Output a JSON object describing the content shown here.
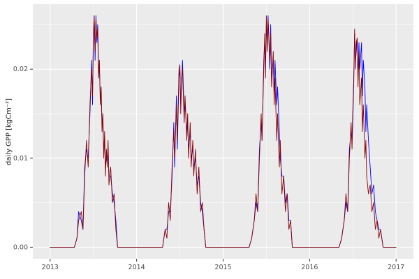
{
  "figure": {
    "background": "#FFFFFF",
    "panel_background": "#EBEBEB",
    "grid_major_color": "#FFFFFF",
    "grid_minor_color": "#FFFFFF",
    "tick_color": "#333333",
    "axis_text_color": "#4D4D4D",
    "axis_title_color": "#1A1A1A"
  },
  "chart_data": {
    "type": "line",
    "title": "",
    "xlabel": "",
    "ylabel": "daily GPP [kgCm⁻²]",
    "xlim": [
      2012.8,
      2017.2
    ],
    "ylim": [
      -0.0013,
      0.0273
    ],
    "grid": true,
    "legend": "none",
    "x_major_ticks": [
      2013,
      2014,
      2015,
      2016,
      2017
    ],
    "x_tick_labels": [
      "2013",
      "2014",
      "2015",
      "2016",
      "2017"
    ],
    "x_minor_ticks": [
      2013.5,
      2014.5,
      2015.5,
      2016.5
    ],
    "y_major_ticks": [
      0,
      0.01,
      0.02
    ],
    "y_tick_labels": [
      "0.00",
      "0.01",
      "0.02"
    ],
    "y_minor_ticks": [
      0.005,
      0.015,
      0.025
    ],
    "x": [
      2013.0,
      2013.28,
      2013.31,
      2013.33,
      2013.36,
      2013.38,
      2013.4,
      2013.42,
      2013.44,
      2013.46,
      2013.48,
      2013.49,
      2013.5,
      2013.51,
      2013.52,
      2013.53,
      2013.54,
      2013.55,
      2013.56,
      2013.57,
      2013.58,
      2013.59,
      2013.6,
      2013.61,
      2013.62,
      2013.63,
      2013.64,
      2013.65,
      2013.66,
      2013.67,
      2013.68,
      2013.7,
      2013.72,
      2013.74,
      2013.76,
      2013.78,
      2014.3,
      2014.33,
      2014.35,
      2014.37,
      2014.39,
      2014.41,
      2014.43,
      2014.44,
      2014.46,
      2014.47,
      2014.49,
      2014.5,
      2014.51,
      2014.52,
      2014.53,
      2014.55,
      2014.56,
      2014.58,
      2014.59,
      2014.6,
      2014.62,
      2014.63,
      2014.65,
      2014.66,
      2014.68,
      2014.7,
      2014.72,
      2014.74,
      2014.76,
      2014.78,
      2014.8,
      2015.3,
      2015.33,
      2015.36,
      2015.38,
      2015.4,
      2015.42,
      2015.44,
      2015.45,
      2015.47,
      2015.48,
      2015.49,
      2015.5,
      2015.51,
      2015.52,
      2015.54,
      2015.55,
      2015.56,
      2015.58,
      2015.59,
      2015.6,
      2015.62,
      2015.63,
      2015.65,
      2015.66,
      2015.68,
      2015.7,
      2015.72,
      2015.74,
      2015.76,
      2015.78,
      2015.8,
      2016.34,
      2016.37,
      2016.4,
      2016.42,
      2016.44,
      2016.46,
      2016.48,
      2016.49,
      2016.51,
      2016.52,
      2016.53,
      2016.54,
      2016.55,
      2016.56,
      2016.57,
      2016.58,
      2016.6,
      2016.61,
      2016.62,
      2016.64,
      2016.65,
      2016.66,
      2016.68,
      2016.7,
      2016.72,
      2016.74,
      2016.76,
      2016.78,
      2016.8,
      2016.82,
      2016.85,
      2017.0
    ],
    "series": [
      {
        "name": "blue",
        "color": "#0000FF",
        "values": [
          0,
          0,
          0.001,
          0.004,
          0.003,
          0.002,
          0.009,
          0.011,
          0.01,
          0.015,
          0.021,
          0.016,
          0.023,
          0.026,
          0.021,
          0.026,
          0.023,
          0.025,
          0.02,
          0.02,
          0.017,
          0.017,
          0.014,
          0.014,
          0.011,
          0.012,
          0.009,
          0.01,
          0.01,
          0.011,
          0.008,
          0.008,
          0.006,
          0.005,
          0.003,
          0,
          0,
          0.002,
          0.002,
          0.004,
          0.004,
          0.008,
          0.014,
          0.009,
          0.017,
          0.011,
          0.019,
          0.02,
          0.016,
          0.018,
          0.021,
          0.015,
          0.016,
          0.013,
          0.014,
          0.011,
          0.013,
          0.01,
          0.011,
          0.009,
          0.01,
          0.007,
          0.008,
          0.005,
          0.004,
          0.002,
          0,
          0,
          0.001,
          0.003,
          0.005,
          0.004,
          0.011,
          0.014,
          0.012,
          0.021,
          0.023,
          0.02,
          0.025,
          0.023,
          0.026,
          0.02,
          0.025,
          0.019,
          0.021,
          0.017,
          0.021,
          0.016,
          0.018,
          0.013,
          0.01,
          0.008,
          0.008,
          0.005,
          0.006,
          0.003,
          0.003,
          0,
          0,
          0.001,
          0.003,
          0.005,
          0.004,
          0.011,
          0.013,
          0.012,
          0.019,
          0.024,
          0.021,
          0.022,
          0.0235,
          0.019,
          0.023,
          0.02,
          0.023,
          0.017,
          0.021,
          0.018,
          0.013,
          0.016,
          0.012,
          0.009,
          0.006,
          0.007,
          0.004,
          0.003,
          0.002,
          0.002,
          0,
          0
        ]
      },
      {
        "name": "darkred",
        "color": "#8B0000",
        "values": [
          0,
          0,
          0.001,
          0.003,
          0.004,
          0.002,
          0.008,
          0.012,
          0.009,
          0.016,
          0.02,
          0.017,
          0.024,
          0.026,
          0.022,
          0.0255,
          0.0235,
          0.0245,
          0.019,
          0.021,
          0.016,
          0.018,
          0.013,
          0.015,
          0.01,
          0.013,
          0.008,
          0.011,
          0.009,
          0.012,
          0.007,
          0.009,
          0.005,
          0.006,
          0.002,
          0,
          0,
          0.002,
          0.001,
          0.005,
          0.003,
          0.009,
          0.013,
          0.01,
          0.016,
          0.012,
          0.02,
          0.0205,
          0.015,
          0.019,
          0.02,
          0.014,
          0.017,
          0.012,
          0.015,
          0.01,
          0.014,
          0.009,
          0.012,
          0.008,
          0.011,
          0.006,
          0.009,
          0.004,
          0.005,
          0.002,
          0,
          0,
          0.001,
          0.003,
          0.006,
          0.004,
          0.01,
          0.015,
          0.012,
          0.02,
          0.024,
          0.019,
          0.026,
          0.022,
          0.0255,
          0.021,
          0.024,
          0.018,
          0.022,
          0.016,
          0.019,
          0.012,
          0.015,
          0.009,
          0.012,
          0.006,
          0.008,
          0.004,
          0.006,
          0.002,
          0.003,
          0,
          0,
          0.001,
          0.003,
          0.006,
          0.004,
          0.01,
          0.014,
          0.011,
          0.018,
          0.0245,
          0.02,
          0.023,
          0.0235,
          0.018,
          0.022,
          0.016,
          0.019,
          0.013,
          0.016,
          0.01,
          0.012,
          0.008,
          0.006,
          0.007,
          0.004,
          0.005,
          0.002,
          0.003,
          0.001,
          0.002,
          0,
          0
        ]
      }
    ]
  }
}
